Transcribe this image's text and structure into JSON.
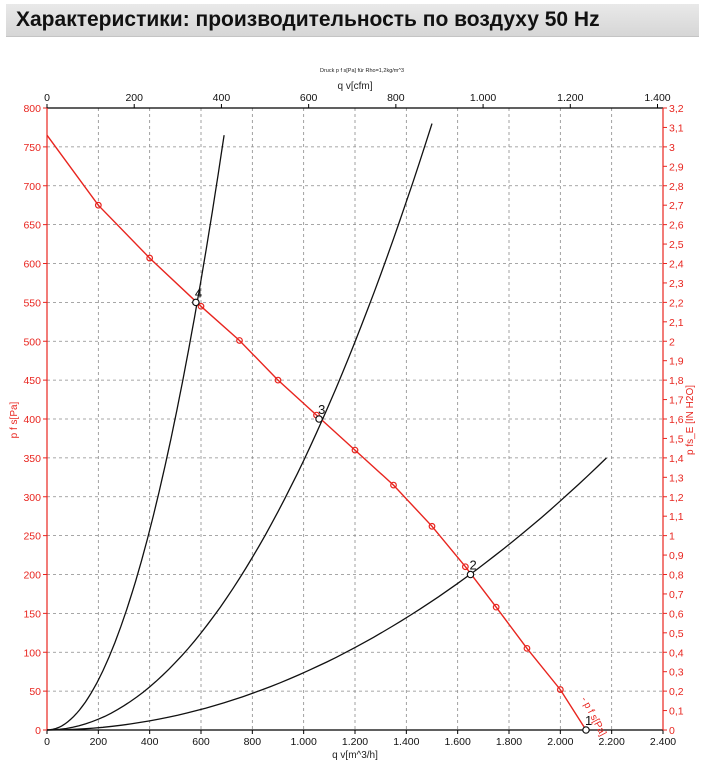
{
  "header": {
    "title": "Характеристики: производительность по воздуху 50 Hz"
  },
  "colors": {
    "primary_axis": "#e8251f",
    "system_curves": "#111111",
    "grid": "#8a8a8a"
  },
  "chart_data": {
    "type": "line",
    "title": "Druck p f s[Pa] für Rho=1,2kg/m^3",
    "xlabel": "q v[m^3/h]",
    "x2label": "q v[cfm]",
    "ylabel": "p f s[Pa]",
    "y2label": "p fs_E [IN H2O]",
    "xlim": [
      0,
      2400
    ],
    "x2lim": [
      0,
      1400
    ],
    "ylim": [
      0,
      800
    ],
    "y2lim": [
      0,
      3.2
    ],
    "grid": true,
    "x_ticks": [
      "0",
      "200",
      "400",
      "600",
      "800",
      "1.000",
      "1.200",
      "1.400",
      "1.600",
      "1.800",
      "2.000",
      "2.200",
      "2.400"
    ],
    "x2_ticks": [
      "0",
      "200",
      "400",
      "600",
      "800",
      "1.000",
      "1.200",
      "1.400"
    ],
    "y_ticks": [
      "0",
      "50",
      "100",
      "150",
      "200",
      "250",
      "300",
      "350",
      "400",
      "450",
      "500",
      "550",
      "600",
      "650",
      "700",
      "750",
      "800"
    ],
    "y2_ticks": [
      "0",
      "0,1",
      "0,2",
      "0,3",
      "0,4",
      "0,5",
      "0,6",
      "0,7",
      "0,8",
      "0,9",
      "1",
      "1,1",
      "1,2",
      "1,3",
      "1,4",
      "1,5",
      "1,6",
      "1,7",
      "1,8",
      "1,9",
      "2",
      "2,1",
      "2,2",
      "2,3",
      "2,4",
      "2,5",
      "2,6",
      "2,7",
      "2,8",
      "2,9",
      "3",
      "3,1",
      "3,2"
    ],
    "fan_curve": {
      "label": "- p f s[Pa]",
      "x": [
        0,
        200,
        400,
        600,
        750,
        900,
        1050,
        1200,
        1350,
        1500,
        1630,
        1750,
        1870,
        2000,
        2100
      ],
      "y": [
        765,
        675,
        607,
        545,
        501,
        450,
        405,
        360,
        315,
        262,
        210,
        158,
        105,
        52,
        0
      ],
      "markers_x": [
        200,
        400,
        600,
        750,
        900,
        1050,
        1200,
        1350,
        1500,
        1630,
        1750,
        1870,
        2000
      ],
      "markers_y": [
        675,
        607,
        545,
        501,
        450,
        405,
        360,
        315,
        262,
        210,
        158,
        105,
        52
      ]
    },
    "system_curves": [
      {
        "x_end": 690,
        "y_end": 765
      },
      {
        "x_end": 1500,
        "y_end": 780
      },
      {
        "x_end": 2180,
        "y_end": 350
      }
    ],
    "operating_points": [
      {
        "label": "4",
        "x": 580,
        "y": 550
      },
      {
        "label": "3",
        "x": 1060,
        "y": 400
      },
      {
        "label": "2",
        "x": 1650,
        "y": 200
      },
      {
        "label": "1",
        "x": 2100,
        "y": 0
      }
    ]
  }
}
